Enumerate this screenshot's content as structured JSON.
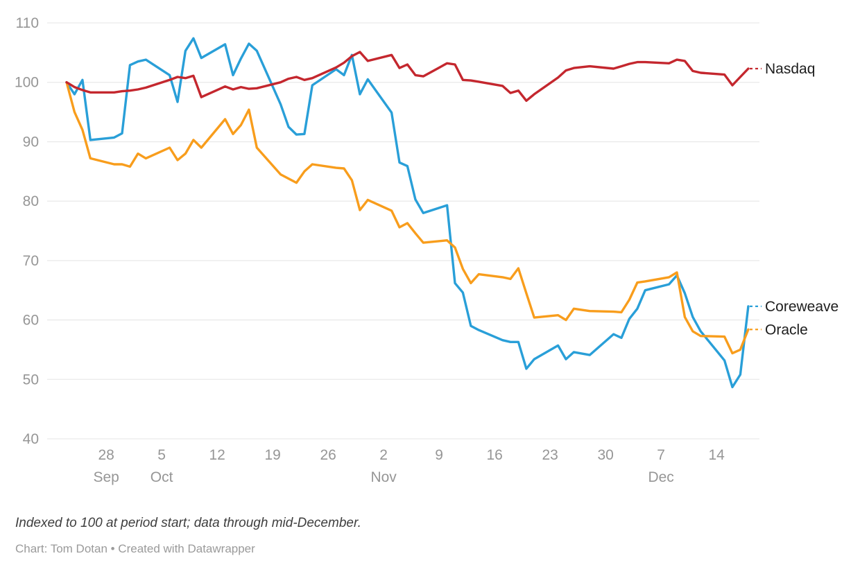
{
  "chart_data": {
    "type": "line",
    "title": "",
    "grid": true,
    "legend_position": "right-edge-labels",
    "ylim": [
      40,
      110
    ],
    "y_ticks": [
      110,
      100,
      90,
      80,
      70,
      60,
      50,
      40
    ],
    "x_ticks": [
      {
        "date": "2025-09-28",
        "label": "28",
        "month": "Sep"
      },
      {
        "date": "2025-10-05",
        "label": "5",
        "month": "Oct"
      },
      {
        "date": "2025-10-12",
        "label": "12",
        "month": ""
      },
      {
        "date": "2025-10-19",
        "label": "19",
        "month": ""
      },
      {
        "date": "2025-10-26",
        "label": "26",
        "month": ""
      },
      {
        "date": "2025-11-02",
        "label": "2",
        "month": "Nov"
      },
      {
        "date": "2025-11-09",
        "label": "9",
        "month": ""
      },
      {
        "date": "2025-11-16",
        "label": "16",
        "month": ""
      },
      {
        "date": "2025-11-23",
        "label": "23",
        "month": ""
      },
      {
        "date": "2025-11-30",
        "label": "30",
        "month": ""
      },
      {
        "date": "2025-12-07",
        "label": "7",
        "month": "Dec"
      },
      {
        "date": "2025-12-14",
        "label": "14",
        "month": ""
      }
    ],
    "dates": [
      "2025-09-23",
      "2025-09-24",
      "2025-09-25",
      "2025-09-26",
      "2025-09-29",
      "2025-09-30",
      "2025-10-01",
      "2025-10-02",
      "2025-10-03",
      "2025-10-06",
      "2025-10-07",
      "2025-10-08",
      "2025-10-09",
      "2025-10-10",
      "2025-10-13",
      "2025-10-14",
      "2025-10-15",
      "2025-10-16",
      "2025-10-17",
      "2025-10-20",
      "2025-10-21",
      "2025-10-22",
      "2025-10-23",
      "2025-10-24",
      "2025-10-27",
      "2025-10-28",
      "2025-10-29",
      "2025-10-30",
      "2025-10-31",
      "2025-11-03",
      "2025-11-04",
      "2025-11-05",
      "2025-11-06",
      "2025-11-07",
      "2025-11-10",
      "2025-11-11",
      "2025-11-12",
      "2025-11-13",
      "2025-11-14",
      "2025-11-17",
      "2025-11-18",
      "2025-11-19",
      "2025-11-20",
      "2025-11-21",
      "2025-11-24",
      "2025-11-25",
      "2025-11-26",
      "2025-11-28",
      "2025-12-01",
      "2025-12-02",
      "2025-12-03",
      "2025-12-04",
      "2025-12-05",
      "2025-12-08",
      "2025-12-09",
      "2025-12-10",
      "2025-12-11",
      "2025-12-12",
      "2025-12-15",
      "2025-12-16",
      "2025-12-17",
      "2025-12-18"
    ],
    "series": [
      {
        "name": "Nasdaq",
        "color": "#c4272e",
        "values": [
          100.0,
          99.2,
          98.7,
          98.3,
          98.3,
          98.5,
          98.6,
          98.8,
          99.1,
          100.4,
          100.9,
          100.7,
          101.1,
          97.5,
          99.3,
          98.8,
          99.2,
          98.9,
          99.0,
          100.0,
          100.6,
          100.9,
          100.4,
          100.7,
          102.5,
          103.3,
          104.4,
          105.1,
          103.6,
          104.6,
          102.4,
          103.0,
          101.2,
          101.0,
          103.2,
          103.0,
          100.4,
          100.3,
          100.1,
          99.4,
          98.2,
          98.6,
          96.9,
          98.0,
          100.8,
          102.0,
          102.4,
          102.7,
          102.3,
          102.7,
          103.1,
          103.4,
          103.4,
          103.2,
          103.8,
          103.6,
          101.9,
          101.6,
          101.3,
          99.5,
          100.9,
          102.3
        ]
      },
      {
        "name": "Coreweave",
        "color": "#299fd8",
        "values": [
          100.0,
          98.0,
          100.4,
          90.3,
          90.7,
          91.4,
          102.9,
          103.5,
          103.8,
          101.2,
          96.7,
          105.3,
          107.4,
          104.1,
          106.4,
          101.2,
          104.0,
          106.5,
          105.3,
          96.3,
          92.5,
          91.2,
          91.3,
          99.5,
          102.2,
          101.2,
          104.6,
          98.0,
          100.5,
          94.9,
          86.5,
          85.9,
          80.3,
          78.0,
          79.3,
          66.2,
          64.6,
          59.0,
          58.3,
          56.6,
          56.3,
          56.3,
          51.8,
          53.4,
          55.7,
          53.4,
          54.6,
          54.1,
          57.6,
          57.0,
          60.2,
          61.9,
          65.0,
          66.0,
          67.5,
          64.5,
          60.5,
          58.1,
          53.2,
          48.7,
          50.8,
          62.3
        ]
      },
      {
        "name": "Oracle",
        "color": "#f89d1c",
        "values": [
          100.0,
          95.0,
          92.0,
          87.2,
          86.2,
          86.2,
          85.8,
          88.0,
          87.2,
          89.0,
          86.9,
          88.0,
          90.3,
          89.0,
          93.8,
          91.3,
          92.8,
          95.4,
          89.0,
          84.5,
          83.8,
          83.1,
          85.0,
          86.2,
          85.6,
          85.5,
          83.5,
          78.5,
          80.2,
          78.4,
          75.6,
          76.3,
          74.6,
          73.0,
          73.4,
          72.2,
          68.6,
          66.2,
          67.7,
          67.2,
          66.9,
          68.7,
          64.5,
          60.4,
          60.8,
          60.0,
          61.9,
          61.5,
          61.4,
          61.3,
          63.4,
          66.3,
          66.5,
          67.2,
          68.0,
          60.5,
          58.1,
          57.3,
          57.2,
          54.4,
          55.0,
          58.4
        ]
      }
    ]
  },
  "colors": {
    "grid": "#e9e9e9",
    "axis_text": "#969696",
    "label_text": "#1d1d1d"
  },
  "footer": {
    "note": "Indexed to 100 at period start; data through mid-December.",
    "credit": "Chart: Tom Dotan • Created with Datawrapper"
  }
}
